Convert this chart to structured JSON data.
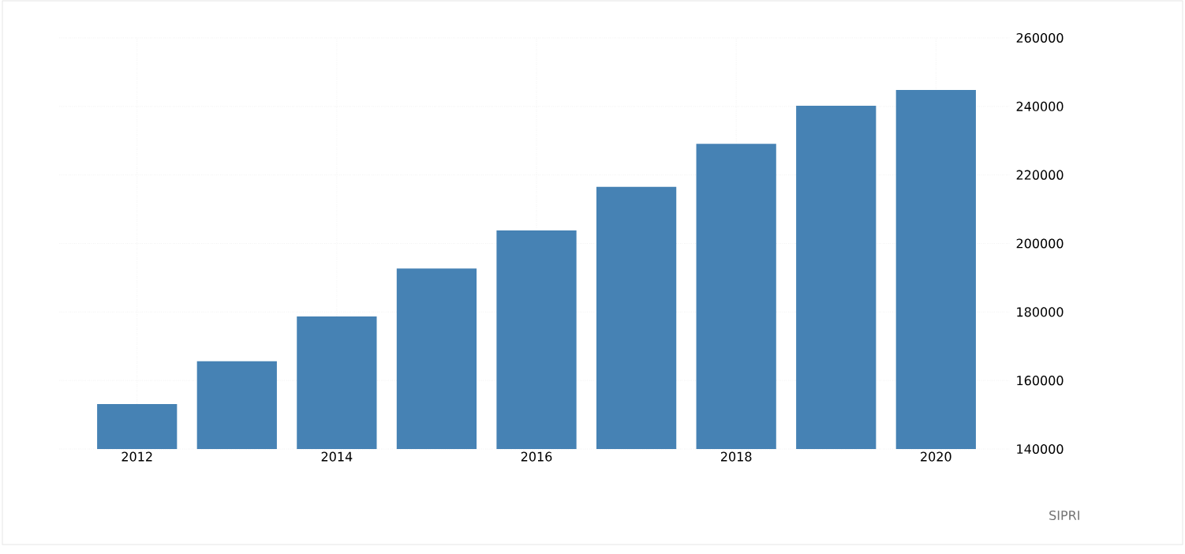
{
  "chart_data": {
    "type": "bar",
    "categories": [
      "2012",
      null,
      "2014",
      null,
      "2016",
      null,
      "2018",
      null,
      "2020"
    ],
    "values": [
      153100,
      165600,
      178700,
      192700,
      203800,
      216500,
      229100,
      240200,
      244800
    ],
    "color": "#4682b4",
    "ylim": [
      140000,
      260000
    ],
    "yticks": [
      140000,
      160000,
      180000,
      200000,
      220000,
      240000,
      260000
    ],
    "grid": true,
    "annotations": [
      "SIPRI"
    ]
  }
}
